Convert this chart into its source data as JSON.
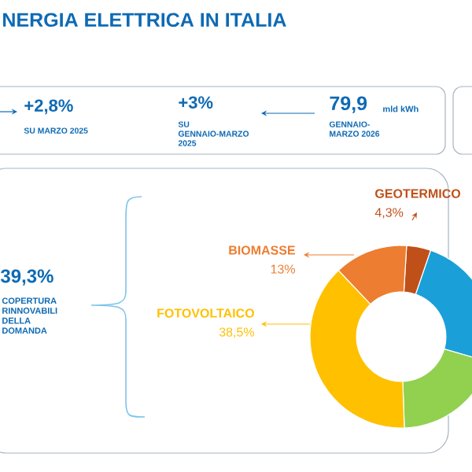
{
  "chart_data": {
    "type": "donut",
    "title": "NERGIA ELETTRICA IN ITALIA",
    "categories": [
      "GEOTERMICO",
      null,
      null,
      "FOTOVOLTAICO",
      "BIOMASSE"
    ],
    "values": [
      4.3,
      24.2,
      20.0,
      38.5,
      13
    ],
    "colors": [
      "#c0501a",
      "#1a9fd8",
      "#92d050",
      "#ffc000",
      "#ed7d31"
    ],
    "value_labels": [
      "4,3%",
      null,
      null,
      "38,5%",
      "13%"
    ],
    "annotations": [
      "+2,8%",
      "SU MARZO 2025",
      "+3%",
      "SU GENNAIO-MARZO 2025",
      "79,9",
      "mld kWh",
      "GENNAIO-MARZO 2026",
      "39,3%",
      "COPERTURA RINNOVABILI DELLA DOMANDA"
    ]
  }
}
